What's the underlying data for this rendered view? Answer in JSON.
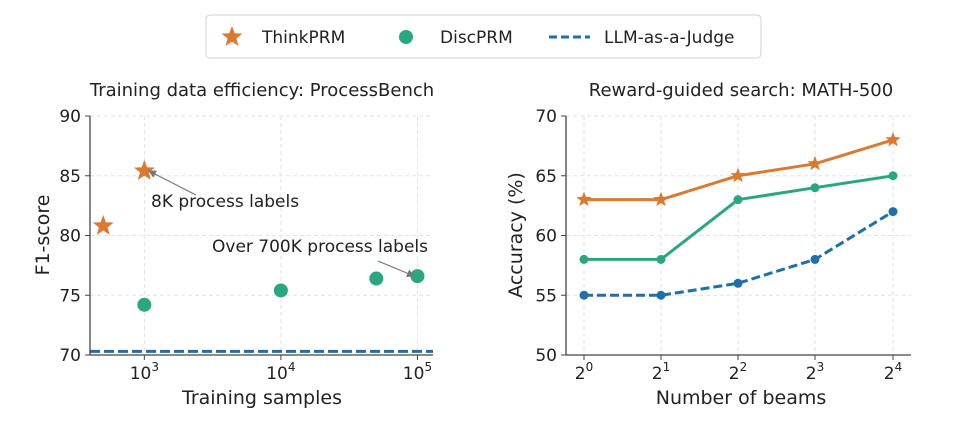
{
  "legend": {
    "entries": [
      {
        "label": "ThinkPRM",
        "color": "#d97a30",
        "marker": "star-icon"
      },
      {
        "label": "DiscPRM",
        "color": "#2aa77f",
        "marker": "circle-icon"
      },
      {
        "label": "LLM-as-a-Judge",
        "color": "#1f6fa8",
        "marker": "dashed-line-icon"
      }
    ]
  },
  "chart_data": [
    {
      "type": "scatter",
      "title": "Training data efficiency: ProcessBench",
      "xlabel": "Training samples",
      "ylabel": "F1-score",
      "x_scale": "log10",
      "xlim": [
        400,
        130000
      ],
      "ylim": [
        70,
        90
      ],
      "x_ticks": [
        {
          "value": 1000,
          "base": "10",
          "exp": "3"
        },
        {
          "value": 10000,
          "base": "10",
          "exp": "4"
        },
        {
          "value": 100000,
          "base": "10",
          "exp": "5"
        }
      ],
      "y_ticks": [
        70,
        75,
        80,
        85,
        90
      ],
      "grid": true,
      "series": [
        {
          "name": "ThinkPRM",
          "marker": "star",
          "color": "#d97a30",
          "points": [
            {
              "x": 500,
              "y": 80.8
            },
            {
              "x": 1000,
              "y": 85.4
            }
          ]
        },
        {
          "name": "DiscPRM",
          "marker": "circle",
          "color": "#2aa77f",
          "points": [
            {
              "x": 1000,
              "y": 74.2
            },
            {
              "x": 10000,
              "y": 75.4
            },
            {
              "x": 50000,
              "y": 76.4
            },
            {
              "x": 100000,
              "y": 76.6
            }
          ]
        },
        {
          "name": "LLM-as-a-Judge",
          "marker": "dashed-line",
          "color": "#1f6fa8",
          "hline": 70.3
        }
      ],
      "annotations": [
        {
          "text": "8K process labels",
          "color": "#d9641a",
          "target": {
            "x": 1000,
            "y": 85.4
          }
        },
        {
          "text": "Over 700K process labels",
          "color": "#1a9a72",
          "target": {
            "x": 100000,
            "y": 76.6
          }
        }
      ]
    },
    {
      "type": "line",
      "title": "Reward-guided search: MATH-500",
      "xlabel": "Number of beams",
      "ylabel": "Accuracy (%)",
      "x": [
        1,
        2,
        4,
        8,
        16
      ],
      "x_ticks": [
        {
          "base": "2",
          "exp": "0"
        },
        {
          "base": "2",
          "exp": "1"
        },
        {
          "base": "2",
          "exp": "2"
        },
        {
          "base": "2",
          "exp": "3"
        },
        {
          "base": "2",
          "exp": "4"
        }
      ],
      "ylim": [
        50,
        70
      ],
      "y_ticks": [
        50,
        55,
        60,
        65,
        70
      ],
      "grid": true,
      "series": [
        {
          "name": "ThinkPRM",
          "marker": "star",
          "color": "#d97a30",
          "line": "solid",
          "values": [
            63,
            63,
            65,
            66,
            68
          ]
        },
        {
          "name": "DiscPRM",
          "marker": "circle",
          "color": "#2aa77f",
          "line": "solid",
          "values": [
            58,
            58,
            63,
            64,
            65
          ]
        },
        {
          "name": "LLM-as-a-Judge",
          "marker": "circle",
          "color": "#1f6fa8",
          "line": "dashed",
          "values": [
            55,
            55,
            56,
            58,
            62
          ]
        }
      ]
    }
  ]
}
